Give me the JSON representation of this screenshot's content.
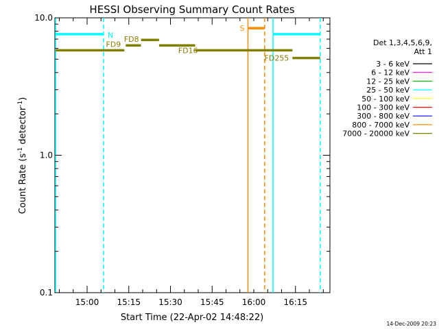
{
  "chart_data": {
    "type": "line",
    "title": "HESSI Observing Summary Count Rates",
    "xlabel": "Start Time (22-Apr-02 14:48:22)",
    "ylabel_main": "Count Rate (s",
    "ylabel_sup1": "-1",
    "ylabel_mid": " detector",
    "ylabel_sup2": "-1",
    "ylabel_end": ")",
    "y_scale": "log",
    "ylim": [
      0.1,
      10.0
    ],
    "xlim_minutes": [
      0,
      99
    ],
    "x_ticks": [
      {
        "label": "15:00",
        "minute": 11.6
      },
      {
        "label": "15:15",
        "minute": 26.6
      },
      {
        "label": "15:30",
        "minute": 41.6
      },
      {
        "label": "15:45",
        "minute": 56.6
      },
      {
        "label": "16:00",
        "minute": 71.6
      },
      {
        "label": "16:15",
        "minute": 86.6
      }
    ],
    "y_ticks": [
      {
        "label": "10.0",
        "value": 10.0
      },
      {
        "label": "1.0",
        "value": 1.0
      },
      {
        "label": "0.1",
        "value": 0.1
      }
    ],
    "legend": {
      "header": [
        "Det 1,3,4,5,6,9,",
        "Att 1"
      ],
      "placement": "right",
      "entries": [
        {
          "label": "3 - 6 keV",
          "color": "#000000"
        },
        {
          "label": "6 - 12 keV",
          "color": "#ff00ff"
        },
        {
          "label": "12 - 25 keV",
          "color": "#00c000"
        },
        {
          "label": "25 - 50 keV",
          "color": "#00ffff"
        },
        {
          "label": "50 - 100 keV",
          "color": "#ffff00"
        },
        {
          "label": "100 - 300 keV",
          "color": "#ff0000"
        },
        {
          "label": "300 - 800 keV",
          "color": "#0000ff"
        },
        {
          "label": "800 - 7000 keV",
          "color": "#ff8c00"
        },
        {
          "label": "7000 - 20000 keV",
          "color": "#808000"
        }
      ]
    },
    "flag_segments": [
      {
        "name": "N",
        "color": "#00ffff",
        "y": 7.6,
        "x0": 0,
        "x1": 17.5,
        "label_side": "right"
      },
      {
        "name": "",
        "color": "#00ffff",
        "y": 7.6,
        "x0": 78.5,
        "x1": 95.5,
        "label_side": "none"
      },
      {
        "name": "S",
        "color": "#ff8c00",
        "y": 8.4,
        "x0": 69.5,
        "x1": 75.5,
        "label_side": "left"
      },
      {
        "name": "FD9",
        "color": "#808000",
        "y": 5.8,
        "x0": 0,
        "x1": 25,
        "label_side": "left-above"
      },
      {
        "name": "FD8",
        "color": "#808000",
        "y": 6.3,
        "x0": 25.5,
        "x1": 31,
        "label_side": "above"
      },
      {
        "name": "",
        "color": "#808000",
        "y": 6.9,
        "x0": 31,
        "x1": 37.5,
        "label_side": "none"
      },
      {
        "name": "",
        "color": "#808000",
        "y": 6.3,
        "x0": 37.5,
        "x1": 50.5,
        "label_side": "none"
      },
      {
        "name": "FD16",
        "color": "#808000",
        "y": 5.8,
        "x0": 50.5,
        "x1": 85.5,
        "label_side": "left-below"
      },
      {
        "name": "FD255",
        "color": "#808000",
        "y": 5.1,
        "x0": 85.5,
        "x1": 95.5,
        "label_side": "left"
      }
    ],
    "vertical_lines": [
      {
        "x": 0,
        "color": "#00ffff",
        "style": "solid"
      },
      {
        "x": 17.5,
        "color": "#00ffff",
        "style": "dashed"
      },
      {
        "x": 69.5,
        "color": "#ff8c00",
        "style": "solid"
      },
      {
        "x": 75.5,
        "color": "#ff8c00",
        "style": "dashed"
      },
      {
        "x": 78.5,
        "color": "#00ffff",
        "style": "solid"
      },
      {
        "x": 95.5,
        "color": "#00ffff",
        "style": "dashed"
      }
    ],
    "timestamp": "14-Dec-2009 20:23"
  }
}
